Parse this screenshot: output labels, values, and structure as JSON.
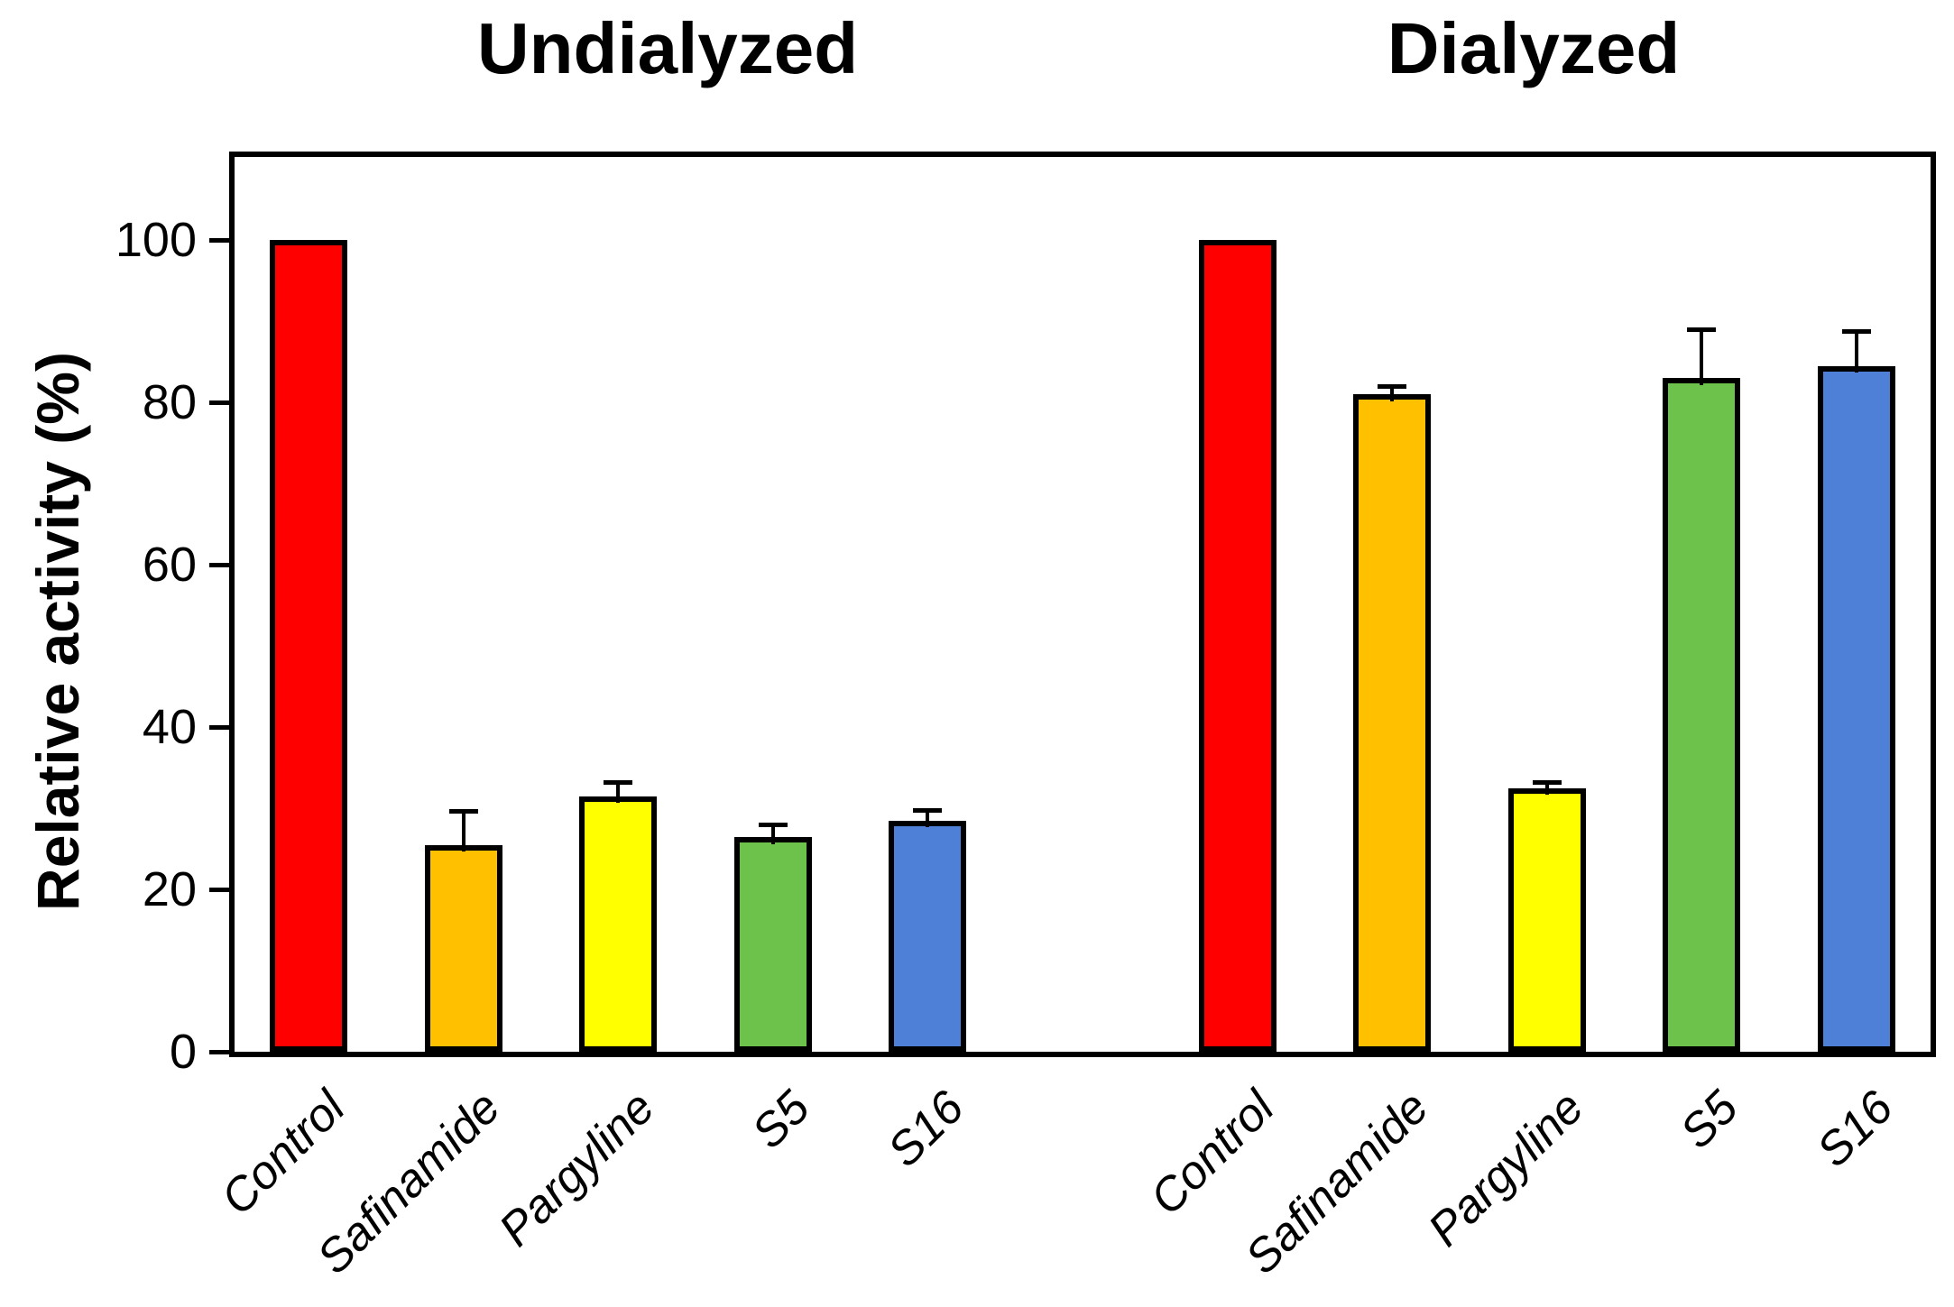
{
  "figure": {
    "group_titles": [
      "Undialyzed",
      "Dialyzed"
    ],
    "y_axis_label": "Relative activity (%)"
  },
  "chart_data": {
    "type": "bar",
    "title": "",
    "ylabel": "Relative activity (%)",
    "xlabel": "",
    "ylim": [
      0,
      110
    ],
    "yticks": [
      0,
      20,
      40,
      60,
      80,
      100
    ],
    "grid": false,
    "legend": false,
    "error_bars": "positive, with caps",
    "groups": [
      {
        "title": "Undialyzed",
        "categories": [
          "Control",
          "Safinamide",
          "Pargyline",
          "S5",
          "S16"
        ],
        "values": [
          100,
          25.5,
          31.5,
          26.5,
          28.5
        ],
        "errors": [
          0,
          4.2,
          1.7,
          1.5,
          1.3
        ],
        "colors": [
          "#FF0000",
          "#FFC000",
          "#FFFF00",
          "#6CC24A",
          "#4E80D8"
        ]
      },
      {
        "title": "Dialyzed",
        "categories": [
          "Control",
          "Safinamide",
          "Pargyline",
          "S5",
          "S16"
        ],
        "values": [
          100,
          81,
          32.5,
          83,
          84.5
        ],
        "errors": [
          0,
          1,
          0.7,
          6,
          4.3
        ],
        "colors": [
          "#FF0000",
          "#FFC000",
          "#FFFF00",
          "#6CC24A",
          "#4E80D8"
        ]
      }
    ]
  }
}
